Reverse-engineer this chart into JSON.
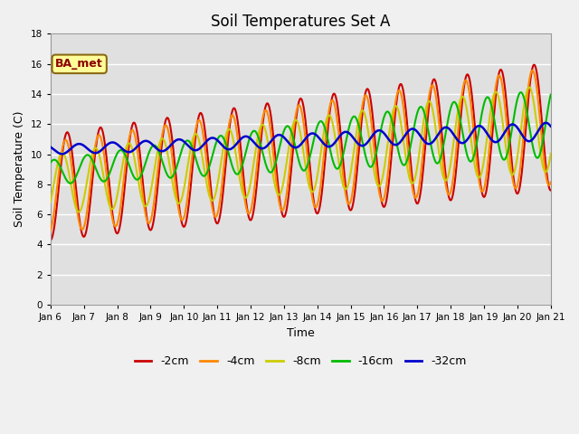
{
  "title": "Soil Temperatures Set A",
  "xlabel": "Time",
  "ylabel": "Soil Temperature (C)",
  "ylim": [
    0,
    18
  ],
  "annotation": "BA_met",
  "legend_labels": [
    "-2cm",
    "-4cm",
    "-8cm",
    "-16cm",
    "-32cm"
  ],
  "legend_colors": [
    "#cc0000",
    "#ff8800",
    "#cccc00",
    "#00bb00",
    "#0000cc"
  ],
  "xtick_labels": [
    "Jan 6",
    "Jan 7",
    "Jan 8",
    "Jan 9",
    "Jan 10",
    "Jan 11",
    "Jan 12",
    "Jan 13",
    "Jan 14",
    "Jan 15",
    "Jan 16",
    "Jan 17",
    "Jan 18",
    "Jan 19",
    "Jan 20",
    "Jan 21"
  ],
  "fig_facecolor": "#f0f0f0",
  "ax_facecolor": "#e0e0e0",
  "title_fontsize": 12,
  "axis_label_fontsize": 9,
  "tick_fontsize": 7.5
}
